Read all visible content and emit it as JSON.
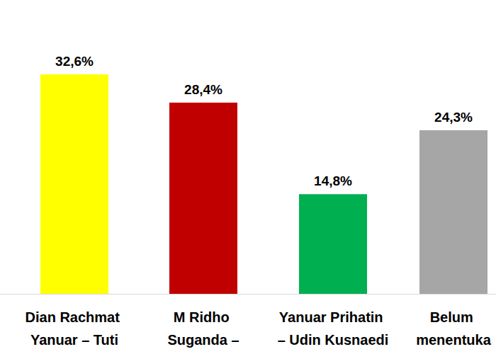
{
  "chart_data": {
    "type": "bar",
    "categories": [
      "Dian Rachmat Yanuar – Tuti",
      "M Ridho Suganda –",
      "Yanuar Prihatin – Udin Kusnaedi",
      "Belum menentuka"
    ],
    "values": [
      32.6,
      28.4,
      14.8,
      24.3
    ],
    "value_labels": [
      "32,6%",
      "28,4%",
      "14,8%",
      "24,3%"
    ],
    "colors": [
      "#ffff00",
      "#c00000",
      "#00b050",
      "#a6a6a6"
    ],
    "ylim": [
      0,
      43.6
    ],
    "grid": false,
    "data_labels": true,
    "tick_labels": "x"
  }
}
